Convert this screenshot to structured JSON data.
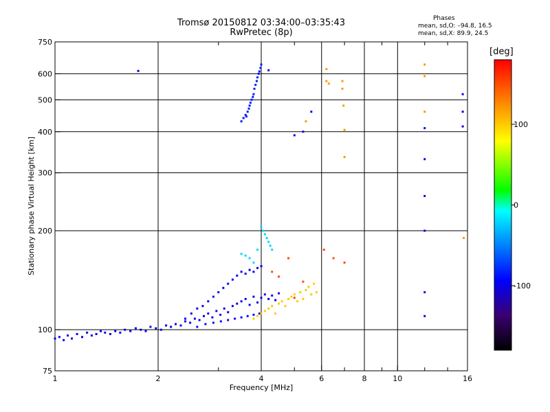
{
  "chart_data": {
    "type": "scatter",
    "title": "Tromsø 20150812 03:34:00–03:35:43",
    "subtitle": "RwPretec (8p)",
    "xlabel": "Frequency [MHz]",
    "ylabel": "Stationary phase Virtual Height [km]",
    "x_scale": "log",
    "y_scale": "log",
    "xlim": [
      1,
      16
    ],
    "ylim": [
      75,
      750
    ],
    "x_ticks": [
      1,
      2,
      4,
      6,
      8,
      10,
      16
    ],
    "x_tick_labels": [
      "1",
      "2",
      "4",
      "6",
      "8",
      "10",
      "16"
    ],
    "x_minor_ticks": [
      3,
      5,
      7,
      9,
      12,
      14
    ],
    "y_ticks": [
      75,
      100,
      200,
      300,
      400,
      500,
      600,
      750
    ],
    "y_tick_labels": [
      "75",
      "100",
      "200",
      "300",
      "400",
      "500",
      "600",
      "750"
    ],
    "grid": true,
    "legend": {
      "title": "Phases",
      "entries": [
        "mean, sd,O: –94.8, 16.5",
        "mean, sd,X:  89.9, 24.5"
      ],
      "placement": "top-right"
    },
    "colorbar": {
      "unit": "[deg]",
      "range": [
        -180,
        180
      ],
      "ticks": [
        100,
        0,
        -100
      ],
      "tick_labels": [
        "100",
        "0",
        "-100"
      ],
      "colors": [
        "#000000",
        "#3a0070",
        "#0000ff",
        "#00ffff",
        "#00ff00",
        "#ffff00",
        "#ff8000",
        "#ff0000"
      ]
    },
    "series": [
      {
        "phase": -100,
        "x": [
          1.0,
          1.03,
          1.06,
          1.09,
          1.12,
          1.16,
          1.2,
          1.24,
          1.28,
          1.32,
          1.36,
          1.4,
          1.45,
          1.5,
          1.55,
          1.6,
          1.66,
          1.72,
          1.78,
          1.84,
          1.9,
          1.97,
          2.04,
          2.11,
          2.18,
          2.25,
          2.33,
          2.4,
          2.48,
          2.56,
          2.64,
          2.72,
          2.8,
          2.88,
          2.96,
          3.04,
          3.12,
          3.2,
          3.3,
          3.4,
          3.5,
          3.6,
          3.7,
          3.8,
          3.9,
          4.0,
          4.1,
          4.2,
          4.3,
          4.4,
          4.5
        ],
        "y": [
          94,
          95,
          93,
          96,
          94,
          97,
          95,
          98,
          96,
          97,
          99,
          98,
          97,
          99,
          98,
          100,
          99,
          101,
          100,
          99,
          102,
          101,
          100,
          103,
          102,
          104,
          103,
          106,
          105,
          108,
          107,
          110,
          112,
          109,
          114,
          111,
          116,
          113,
          118,
          120,
          122,
          124,
          119,
          126,
          121,
          125,
          128,
          124,
          127,
          123,
          129
        ]
      },
      {
        "phase": -95,
        "x": [
          2.4,
          2.5,
          2.6,
          2.7,
          2.8,
          2.9,
          3.0,
          3.1,
          3.2,
          3.3,
          3.4,
          3.5,
          3.6,
          3.7,
          3.8,
          3.9,
          4.0
        ],
        "y": [
          108,
          112,
          116,
          118,
          122,
          126,
          130,
          134,
          138,
          142,
          146,
          150,
          148,
          152,
          150,
          154,
          156
        ]
      },
      {
        "phase": -90,
        "x": [
          2.6,
          2.75,
          2.9,
          3.05,
          3.2,
          3.35,
          3.5,
          3.65,
          3.8,
          3.95
        ],
        "y": [
          102,
          104,
          105,
          106,
          107,
          108,
          109,
          110,
          111,
          112
        ]
      },
      {
        "phase": -85,
        "x": [
          3.5,
          3.55,
          3.6,
          3.62,
          3.65,
          3.68,
          3.7,
          3.72,
          3.75,
          3.78,
          3.8,
          3.82,
          3.85,
          3.88,
          3.9,
          3.93,
          3.95,
          3.98,
          4.0
        ],
        "y": [
          430,
          440,
          450,
          445,
          460,
          470,
          480,
          490,
          500,
          510,
          520,
          540,
          555,
          570,
          585,
          600,
          610,
          625,
          640
        ]
      },
      {
        "phase": -100,
        "x": [
          1.75,
          4.2,
          5.0,
          5.3,
          5.6,
          12.0,
          12.0,
          12.0,
          12.0,
          12.0,
          12.0,
          15.5,
          15.5,
          15.5
        ],
        "y": [
          612,
          615,
          390,
          400,
          460,
          110,
          130,
          200,
          255,
          330,
          410,
          415,
          460,
          520
        ]
      },
      {
        "phase": -20,
        "x": [
          3.5,
          3.6,
          3.7,
          3.8,
          3.9,
          4.0,
          4.05,
          4.1,
          4.15,
          4.2,
          4.25,
          4.3
        ],
        "y": [
          170,
          168,
          165,
          160,
          175,
          205,
          200,
          195,
          190,
          185,
          180,
          175
        ]
      },
      {
        "phase": 100,
        "x": [
          3.8,
          3.9,
          4.0,
          4.1,
          4.2,
          4.3,
          4.4,
          4.5,
          4.6,
          4.7,
          4.8,
          4.9,
          5.0,
          5.1,
          5.2,
          5.3,
          5.4,
          5.5,
          5.6,
          5.7,
          5.8
        ],
        "y": [
          108,
          110,
          112,
          114,
          116,
          118,
          112,
          120,
          122,
          118,
          124,
          126,
          128,
          122,
          130,
          124,
          132,
          135,
          128,
          138,
          130
        ]
      },
      {
        "phase": 120,
        "x": [
          5.4,
          6.2,
          6.2,
          6.3,
          6.9,
          6.9,
          6.95,
          7.0,
          7.0,
          12.0,
          12.0,
          12.0,
          15.6
        ],
        "y": [
          430,
          620,
          570,
          560,
          570,
          540,
          480,
          405,
          335,
          590,
          640,
          460,
          190
        ]
      },
      {
        "phase": 150,
        "x": [
          4.3,
          4.5,
          4.8,
          5.0,
          5.3,
          6.1,
          6.5,
          7.0
        ],
        "y": [
          150,
          145,
          165,
          125,
          140,
          175,
          165,
          160
        ]
      }
    ]
  }
}
